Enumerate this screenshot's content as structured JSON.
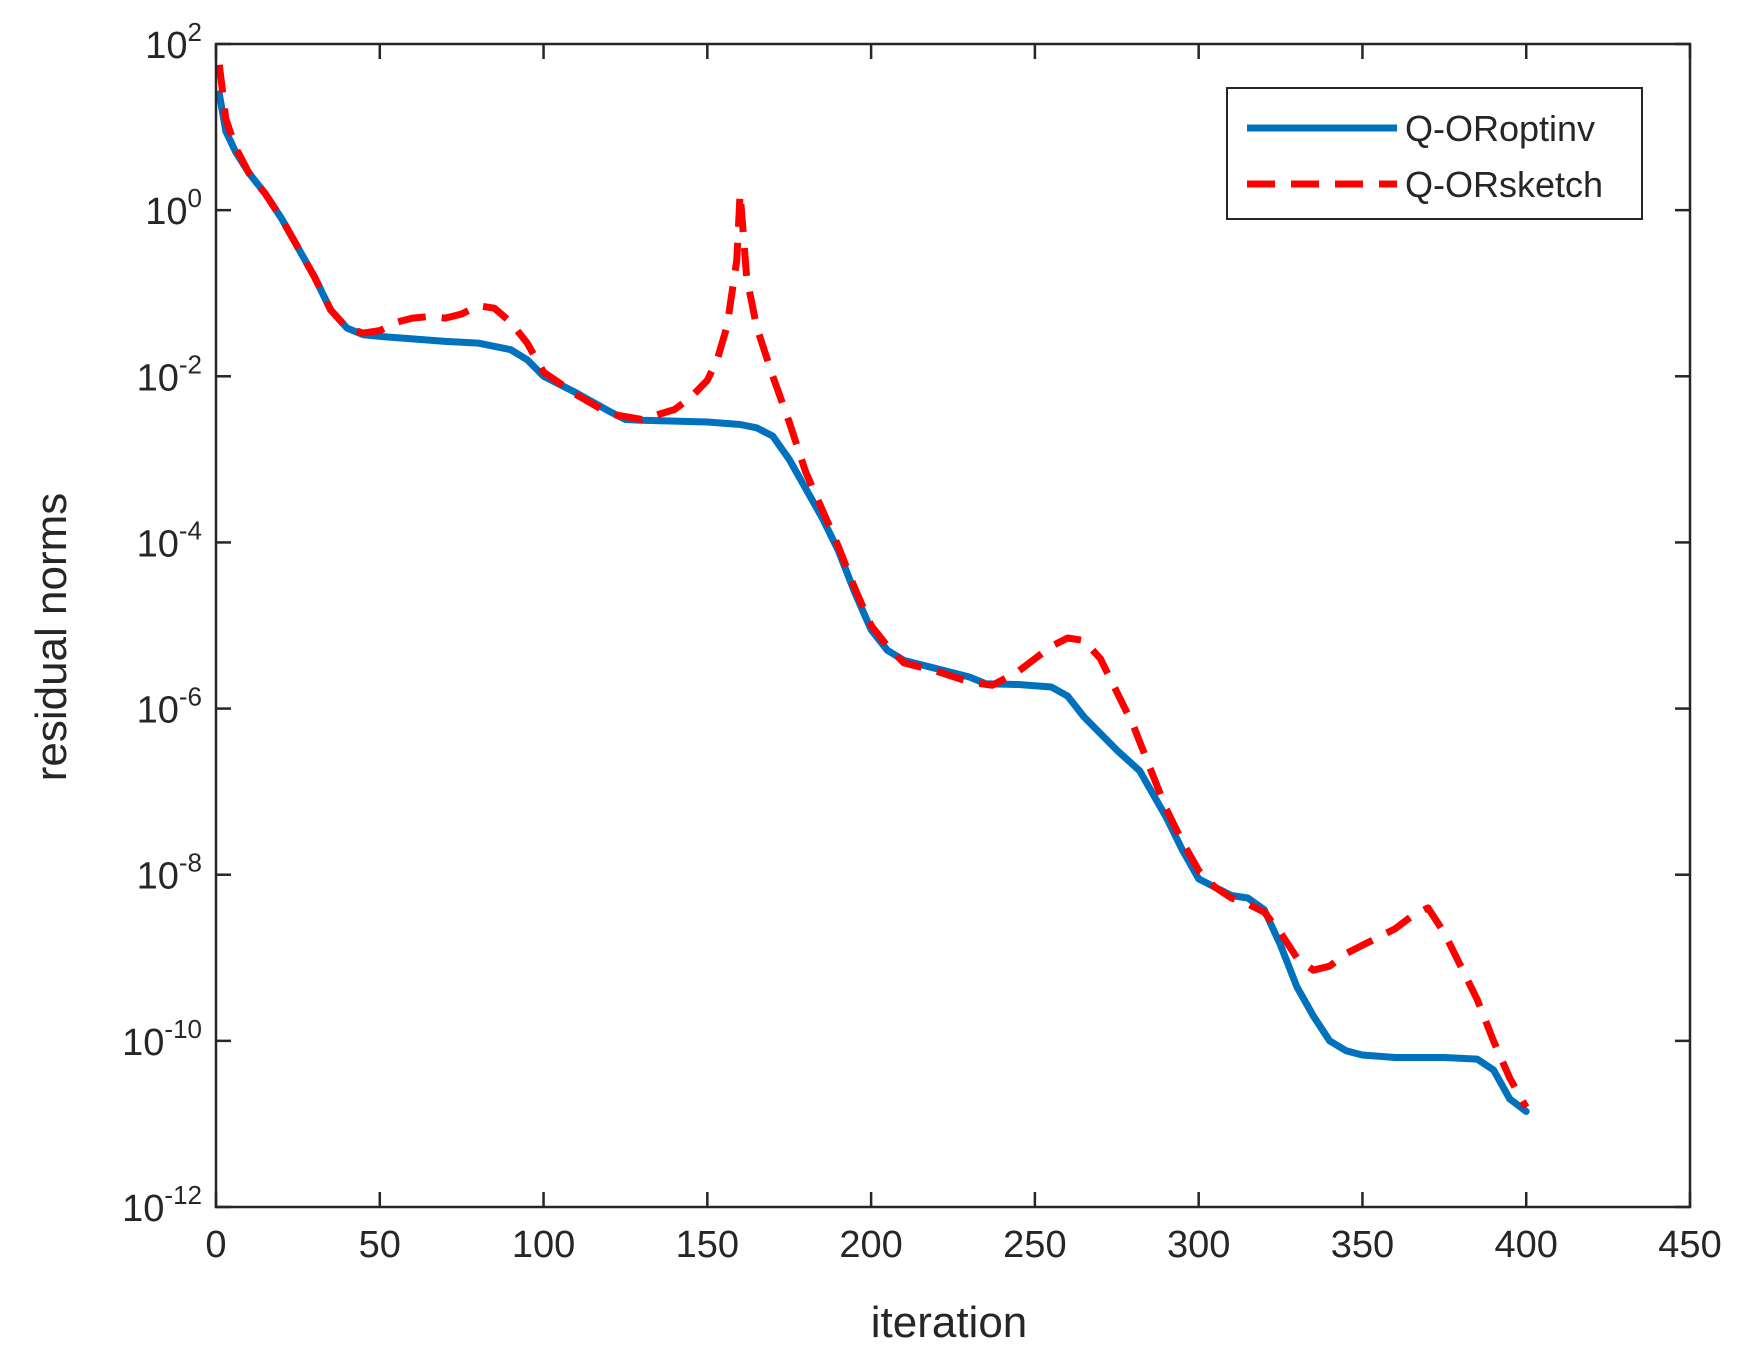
{
  "chart_data": {
    "type": "line",
    "title": "",
    "xlabel": "iteration",
    "ylabel": "residual norms",
    "xlim": [
      0,
      450
    ],
    "ylim_log10": [
      -12,
      2
    ],
    "yscale": "log",
    "grid": false,
    "legend_position": "top-right",
    "x_ticks": [
      {
        "value": 0,
        "label": "0"
      },
      {
        "value": 50,
        "label": "50"
      },
      {
        "value": 100,
        "label": "100"
      },
      {
        "value": 150,
        "label": "150"
      },
      {
        "value": 200,
        "label": "200"
      },
      {
        "value": 250,
        "label": "250"
      },
      {
        "value": 300,
        "label": "300"
      },
      {
        "value": 350,
        "label": "350"
      },
      {
        "value": 400,
        "label": "400"
      },
      {
        "value": 450,
        "label": "450"
      }
    ],
    "y_ticks": [
      {
        "exp": 2,
        "base": "10",
        "sup": "2"
      },
      {
        "exp": 0,
        "base": "10",
        "sup": "0"
      },
      {
        "exp": -2,
        "base": "10",
        "sup": "-2"
      },
      {
        "exp": -4,
        "base": "10",
        "sup": "-4"
      },
      {
        "exp": -6,
        "base": "10",
        "sup": "-6"
      },
      {
        "exp": -8,
        "base": "10",
        "sup": "-8"
      },
      {
        "exp": -10,
        "base": "10",
        "sup": "-10"
      },
      {
        "exp": -12,
        "base": "10",
        "sup": "-12"
      }
    ],
    "series": [
      {
        "name": "Q-ORoptinv",
        "color": "#0072BD",
        "style": "solid",
        "points_log10": [
          [
            1,
            1.4
          ],
          [
            3,
            0.95
          ],
          [
            6,
            0.7
          ],
          [
            10,
            0.45
          ],
          [
            15,
            0.2
          ],
          [
            20,
            -0.1
          ],
          [
            25,
            -0.45
          ],
          [
            30,
            -0.8
          ],
          [
            35,
            -1.2
          ],
          [
            40,
            -1.42
          ],
          [
            45,
            -1.5
          ],
          [
            50,
            -1.52
          ],
          [
            60,
            -1.55
          ],
          [
            70,
            -1.58
          ],
          [
            80,
            -1.6
          ],
          [
            90,
            -1.68
          ],
          [
            95,
            -1.8
          ],
          [
            100,
            -2.0
          ],
          [
            110,
            -2.2
          ],
          [
            120,
            -2.42
          ],
          [
            125,
            -2.52
          ],
          [
            130,
            -2.53
          ],
          [
            140,
            -2.54
          ],
          [
            150,
            -2.55
          ],
          [
            160,
            -2.58
          ],
          [
            165,
            -2.62
          ],
          [
            170,
            -2.72
          ],
          [
            175,
            -3.0
          ],
          [
            180,
            -3.35
          ],
          [
            185,
            -3.7
          ],
          [
            190,
            -4.1
          ],
          [
            195,
            -4.6
          ],
          [
            200,
            -5.05
          ],
          [
            205,
            -5.3
          ],
          [
            210,
            -5.42
          ],
          [
            220,
            -5.52
          ],
          [
            230,
            -5.62
          ],
          [
            235,
            -5.7
          ],
          [
            245,
            -5.71
          ],
          [
            255,
            -5.74
          ],
          [
            260,
            -5.85
          ],
          [
            265,
            -6.1
          ],
          [
            275,
            -6.5
          ],
          [
            282,
            -6.75
          ],
          [
            290,
            -7.3
          ],
          [
            295,
            -7.7
          ],
          [
            300,
            -8.05
          ],
          [
            305,
            -8.15
          ],
          [
            310,
            -8.25
          ],
          [
            315,
            -8.28
          ],
          [
            320,
            -8.42
          ],
          [
            325,
            -8.85
          ],
          [
            330,
            -9.35
          ],
          [
            335,
            -9.7
          ],
          [
            340,
            -10.0
          ],
          [
            345,
            -10.12
          ],
          [
            350,
            -10.17
          ],
          [
            360,
            -10.2
          ],
          [
            375,
            -10.2
          ],
          [
            385,
            -10.22
          ],
          [
            390,
            -10.35
          ],
          [
            395,
            -10.7
          ],
          [
            400,
            -10.85
          ]
        ]
      },
      {
        "name": "Q-ORsketch",
        "color": "#FF0000",
        "style": "dashed",
        "points_log10": [
          [
            1,
            1.75
          ],
          [
            3,
            1.1
          ],
          [
            6,
            0.75
          ],
          [
            10,
            0.45
          ],
          [
            15,
            0.2
          ],
          [
            20,
            -0.1
          ],
          [
            25,
            -0.45
          ],
          [
            30,
            -0.8
          ],
          [
            35,
            -1.2
          ],
          [
            40,
            -1.42
          ],
          [
            45,
            -1.48
          ],
          [
            50,
            -1.45
          ],
          [
            55,
            -1.35
          ],
          [
            60,
            -1.3
          ],
          [
            65,
            -1.28
          ],
          [
            70,
            -1.3
          ],
          [
            75,
            -1.25
          ],
          [
            80,
            -1.15
          ],
          [
            85,
            -1.18
          ],
          [
            90,
            -1.35
          ],
          [
            95,
            -1.6
          ],
          [
            100,
            -1.95
          ],
          [
            110,
            -2.22
          ],
          [
            120,
            -2.45
          ],
          [
            130,
            -2.52
          ],
          [
            140,
            -2.4
          ],
          [
            145,
            -2.25
          ],
          [
            150,
            -2.05
          ],
          [
            153,
            -1.8
          ],
          [
            156,
            -1.4
          ],
          [
            159,
            -0.6
          ],
          [
            160,
            0.2
          ],
          [
            161,
            -0.3
          ],
          [
            162,
            -0.8
          ],
          [
            165,
            -1.4
          ],
          [
            170,
            -2.0
          ],
          [
            175,
            -2.55
          ],
          [
            180,
            -3.15
          ],
          [
            185,
            -3.6
          ],
          [
            190,
            -4.05
          ],
          [
            195,
            -4.55
          ],
          [
            200,
            -5.0
          ],
          [
            205,
            -5.25
          ],
          [
            210,
            -5.45
          ],
          [
            220,
            -5.55
          ],
          [
            230,
            -5.68
          ],
          [
            237,
            -5.72
          ],
          [
            245,
            -5.55
          ],
          [
            255,
            -5.25
          ],
          [
            260,
            -5.15
          ],
          [
            265,
            -5.18
          ],
          [
            270,
            -5.4
          ],
          [
            275,
            -5.8
          ],
          [
            280,
            -6.2
          ],
          [
            285,
            -6.7
          ],
          [
            290,
            -7.2
          ],
          [
            295,
            -7.6
          ],
          [
            300,
            -7.95
          ],
          [
            305,
            -8.15
          ],
          [
            310,
            -8.28
          ],
          [
            315,
            -8.35
          ],
          [
            320,
            -8.45
          ],
          [
            325,
            -8.7
          ],
          [
            330,
            -9.0
          ],
          [
            335,
            -9.15
          ],
          [
            340,
            -9.1
          ],
          [
            345,
            -8.95
          ],
          [
            350,
            -8.85
          ],
          [
            360,
            -8.65
          ],
          [
            365,
            -8.5
          ],
          [
            370,
            -8.4
          ],
          [
            375,
            -8.7
          ],
          [
            380,
            -9.1
          ],
          [
            385,
            -9.5
          ],
          [
            390,
            -10.0
          ],
          [
            395,
            -10.45
          ],
          [
            400,
            -10.8
          ]
        ]
      }
    ]
  }
}
